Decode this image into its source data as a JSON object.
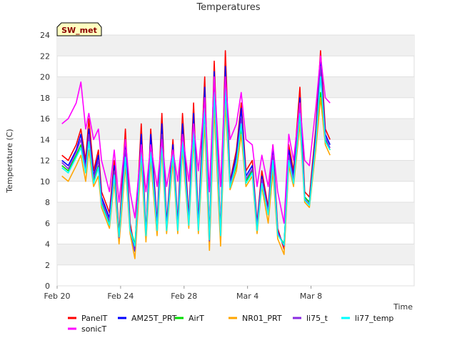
{
  "chart_data": {
    "type": "line",
    "title": "Temperatures",
    "xlabel": "Time",
    "ylabel": "Temperature (C)",
    "badge": "SW_met",
    "ylim": [
      0,
      24
    ],
    "yticks": [
      0,
      2,
      4,
      6,
      8,
      10,
      12,
      14,
      16,
      18,
      20,
      22,
      24
    ],
    "xlim": [
      0,
      22.5
    ],
    "xticks": [
      {
        "value": 0,
        "label": "Feb 20"
      },
      {
        "value": 4,
        "label": "Feb 24"
      },
      {
        "value": 8,
        "label": "Feb 28"
      },
      {
        "value": 12,
        "label": "Mar 4"
      },
      {
        "value": 16,
        "label": "Mar 8"
      }
    ],
    "grid": "horizontal bands",
    "legend_placement": "bottom",
    "x": [
      0.3,
      0.7,
      1.2,
      1.5,
      1.8,
      2.0,
      2.3,
      2.6,
      2.8,
      3.3,
      3.6,
      3.9,
      4.3,
      4.6,
      4.9,
      5.3,
      5.6,
      5.9,
      6.3,
      6.6,
      6.9,
      7.3,
      7.6,
      7.9,
      8.3,
      8.6,
      8.9,
      9.3,
      9.6,
      9.9,
      10.3,
      10.6,
      10.9,
      11.3,
      11.6,
      11.9,
      12.3,
      12.6,
      12.9,
      13.3,
      13.6,
      13.9,
      14.3,
      14.6,
      14.9,
      15.3,
      15.6,
      15.9,
      16.3,
      16.6,
      16.9,
      17.2
    ],
    "series": [
      {
        "name": "PanelT",
        "color": "#ff0000",
        "values": [
          12.5,
          12.0,
          13.5,
          15.0,
          12.0,
          16.0,
          11.0,
          13.0,
          9.0,
          7.0,
          12.0,
          5.0,
          15.0,
          6.0,
          3.5,
          15.5,
          5.0,
          15.0,
          6.0,
          16.5,
          6.0,
          14.0,
          6.0,
          16.5,
          6.5,
          17.5,
          6.0,
          20.0,
          4.5,
          21.5,
          5.0,
          22.5,
          10.0,
          13.0,
          17.5,
          11.0,
          12.0,
          6.0,
          11.0,
          7.5,
          13.5,
          5.5,
          3.5,
          13.5,
          11.0,
          19.0,
          9.0,
          8.5,
          15.0,
          22.5,
          15.0,
          14.0
        ]
      },
      {
        "name": "AM25T_PRT",
        "color": "#0000ff",
        "values": [
          12.0,
          11.5,
          13.0,
          14.5,
          11.5,
          15.0,
          10.5,
          12.5,
          8.5,
          6.5,
          11.5,
          4.5,
          14.0,
          5.5,
          3.3,
          14.5,
          4.8,
          14.5,
          5.8,
          15.5,
          5.8,
          13.5,
          5.8,
          15.5,
          6.2,
          16.5,
          5.8,
          19.0,
          4.2,
          20.5,
          4.8,
          21.0,
          9.8,
          12.5,
          17.0,
          10.5,
          11.5,
          5.8,
          10.5,
          7.2,
          13.0,
          5.2,
          3.8,
          13.0,
          10.5,
          18.0,
          8.5,
          8.0,
          14.5,
          21.5,
          14.5,
          13.5
        ]
      },
      {
        "name": "AirT",
        "color": "#00dd00",
        "values": [
          11.5,
          11.0,
          12.5,
          13.5,
          11.0,
          14.0,
          10.0,
          11.5,
          8.0,
          6.0,
          10.5,
          4.8,
          12.0,
          5.5,
          4.0,
          12.5,
          5.0,
          12.5,
          5.5,
          13.5,
          5.5,
          12.5,
          5.5,
          13.5,
          6.0,
          14.5,
          5.5,
          16.0,
          4.5,
          17.5,
          5.0,
          18.0,
          9.5,
          11.5,
          15.0,
          10.0,
          11.0,
          5.5,
          10.0,
          7.0,
          12.0,
          5.0,
          4.0,
          12.0,
          10.0,
          16.0,
          8.5,
          8.0,
          13.5,
          18.5,
          14.0,
          13.0
        ]
      },
      {
        "name": "NR01_PRT",
        "color": "#ffa500",
        "values": [
          10.5,
          10.0,
          11.5,
          12.5,
          10.0,
          13.0,
          9.5,
          10.5,
          7.5,
          5.5,
          10.0,
          4.0,
          11.5,
          5.0,
          2.6,
          12.0,
          4.2,
          12.0,
          4.8,
          13.0,
          5.0,
          12.0,
          5.0,
          13.0,
          5.5,
          14.0,
          5.0,
          15.5,
          3.4,
          17.0,
          3.8,
          17.5,
          9.2,
          11.0,
          14.5,
          9.5,
          10.5,
          5.0,
          9.5,
          6.0,
          11.0,
          4.5,
          3.0,
          11.5,
          9.5,
          15.5,
          8.0,
          7.5,
          13.0,
          18.0,
          13.5,
          12.5
        ]
      },
      {
        "name": "li75_t",
        "color": "#8a2be2",
        "values": [
          11.8,
          11.2,
          12.8,
          14.0,
          11.2,
          14.5,
          10.3,
          12.0,
          8.2,
          6.2,
          11.0,
          4.6,
          13.0,
          5.6,
          3.5,
          13.5,
          4.9,
          13.5,
          5.6,
          14.5,
          5.6,
          13.0,
          5.6,
          14.5,
          6.1,
          15.5,
          5.6,
          18.0,
          4.3,
          19.5,
          4.9,
          20.0,
          9.6,
          12.0,
          16.0,
          10.2,
          11.2,
          5.6,
          10.2,
          7.1,
          12.5,
          5.1,
          3.8,
          12.5,
          10.2,
          17.0,
          8.3,
          7.8,
          14.0,
          21.0,
          14.2,
          13.2
        ]
      },
      {
        "name": "li77_temp",
        "color": "#00ffff",
        "values": [
          11.3,
          10.8,
          12.3,
          13.2,
          10.8,
          13.8,
          9.8,
          11.3,
          7.8,
          5.8,
          10.6,
          4.7,
          12.3,
          5.3,
          3.8,
          12.8,
          4.8,
          12.8,
          5.3,
          13.8,
          5.3,
          12.8,
          5.3,
          13.8,
          5.8,
          14.8,
          5.3,
          17.0,
          4.4,
          18.5,
          4.8,
          19.0,
          9.4,
          11.8,
          15.5,
          9.8,
          10.8,
          5.3,
          9.8,
          6.8,
          12.0,
          4.9,
          3.9,
          12.0,
          9.8,
          16.5,
          8.2,
          7.7,
          13.7,
          20.0,
          13.8,
          13.0
        ]
      },
      {
        "name": "sonicT",
        "color": "#ff00ff",
        "values": [
          15.5,
          16.0,
          17.5,
          19.5,
          15.0,
          16.5,
          14.0,
          15.0,
          12.0,
          9.0,
          13.0,
          8.0,
          14.0,
          9.0,
          6.5,
          13.5,
          9.0,
          13.5,
          9.5,
          14.0,
          9.5,
          13.0,
          10.0,
          14.5,
          10.0,
          15.5,
          11.0,
          18.0,
          9.0,
          20.0,
          9.5,
          20.0,
          14.0,
          15.5,
          18.5,
          14.0,
          13.5,
          9.5,
          12.5,
          9.5,
          13.5,
          9.0,
          6.0,
          14.5,
          12.0,
          17.5,
          12.0,
          11.5,
          17.0,
          22.0,
          18.0,
          17.5
        ]
      }
    ]
  }
}
